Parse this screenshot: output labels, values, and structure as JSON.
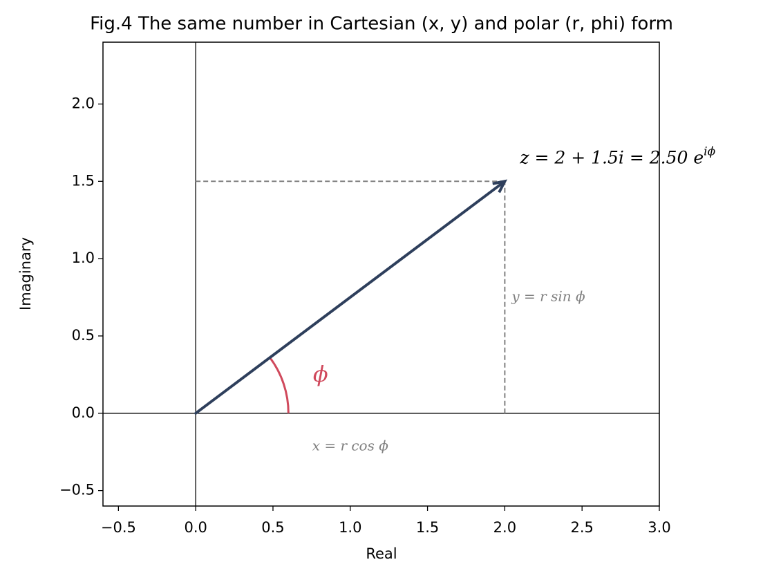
{
  "chart_data": {
    "type": "vector",
    "title": "Fig.4 The same number in Cartesian (x, y) and polar (r, phi) form",
    "xlabel": "Real",
    "ylabel": "Imaginary",
    "xlim": [
      -0.6,
      3.0
    ],
    "ylim": [
      -0.6,
      2.4
    ],
    "xticks": [
      {
        "value": -0.5,
        "label": "−0.5"
      },
      {
        "value": 0,
        "label": "0.0"
      },
      0.5,
      {
        "value": 1,
        "label": "1.0"
      },
      1.5,
      {
        "value": 2,
        "label": "2.0"
      },
      2.5,
      {
        "value": 3,
        "label": "3.0"
      }
    ],
    "yticks": [
      {
        "value": -0.5,
        "label": "−0.5"
      },
      {
        "value": 0,
        "label": "0.0"
      },
      0.5,
      {
        "value": 1,
        "label": "1.0"
      },
      1.5,
      {
        "value": 2,
        "label": "2.0"
      }
    ],
    "reference_lines": {
      "x": 0,
      "y": 0
    },
    "vector": {
      "x": [
        0,
        2
      ],
      "y": [
        0,
        1.5
      ],
      "color": "#2e3f5c"
    },
    "projection_color": "#808080",
    "angle_arc_radius": 0.6,
    "angle_color": "#d0495c",
    "annotations": {
      "z_label": {
        "text": "z = 2 + 1.5i = 2.50 e",
        "superscript": "iϕ"
      },
      "y_projection_label": "y = r sin ϕ",
      "x_projection_label": "x = r cos ϕ",
      "angle_label": "ϕ"
    }
  }
}
